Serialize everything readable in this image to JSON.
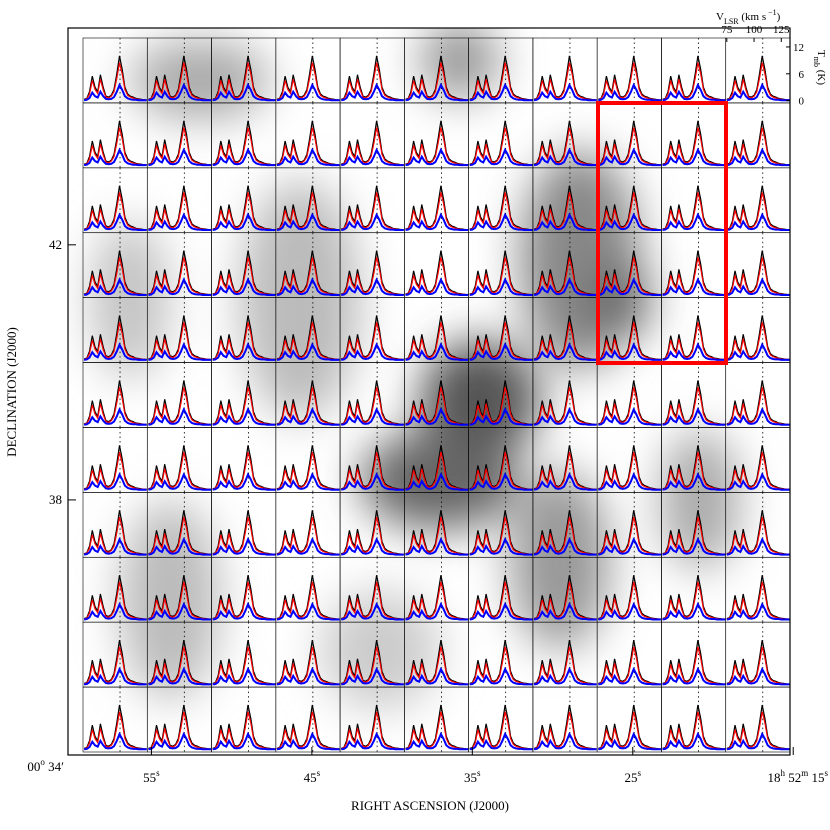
{
  "chart_data": {
    "type": "spectral-grid",
    "x_label": "RIGHT ASCENSION (J2000)",
    "y_label": "DECLINATION (J2000)",
    "xlim": [
      60.2,
      15.2
    ],
    "xticks": [
      {
        "value": 55,
        "label": [
          "55",
          "s"
        ]
      },
      {
        "value": 45,
        "label": [
          "45",
          "s"
        ]
      },
      {
        "value": 35,
        "label": [
          "35",
          "s"
        ]
      },
      {
        "value": 25,
        "label": [
          "25",
          "s"
        ]
      },
      {
        "value": 15,
        "label": [
          "18",
          "h",
          " 52",
          "m",
          " 15",
          "s"
        ]
      }
    ],
    "ylim": [
      34,
      45.4
    ],
    "yticks": [
      42,
      38,
      {
        "value": 34,
        "label": [
          "00",
          "o",
          " 34′"
        ]
      }
    ],
    "spectra": {
      "velocity_label": [
        "V",
        "LSR",
        " (km s",
        " −1",
        ")"
      ],
      "intensity_label": [
        "T",
        "mb",
        " (K)"
      ],
      "vlim": [
        74,
        133
      ],
      "vticks": [
        75,
        100,
        125
      ],
      "tlim": [
        -0.5,
        14
      ],
      "tticks": [
        0,
        6,
        12
      ],
      "ref_velocity": 108,
      "x": [
        75,
        77.5,
        80,
        82.5,
        85,
        87.5,
        90,
        92.5,
        95,
        97.5,
        100,
        102.5,
        105,
        107.5,
        110,
        112.5,
        115,
        117.5,
        120,
        122.5,
        125,
        127.5,
        130,
        132.5
      ],
      "series": [
        {
          "color": "#000000",
          "values": [
            0.3,
            0.5,
            2,
            5.5,
            3,
            2,
            5.8,
            3,
            1,
            0.8,
            1.2,
            2.5,
            6,
            10,
            7,
            3,
            1.5,
            1,
            0.8,
            0.5,
            0.4,
            0.3,
            0.2,
            0.2
          ]
        },
        {
          "color": "#ff0000",
          "values": [
            0.2,
            0.4,
            1.5,
            4.5,
            2.5,
            1.6,
            4.8,
            2.4,
            0.8,
            0.6,
            1,
            2,
            5,
            8.5,
            6,
            2.5,
            1.2,
            0.8,
            0.6,
            0.4,
            0.3,
            0.2,
            0.2,
            0.1
          ]
        },
        {
          "color": "#0000ff",
          "values": [
            0.1,
            0.2,
            0.6,
            1.8,
            1,
            0.7,
            2,
            1,
            0.4,
            0.3,
            0.4,
            0.8,
            2,
            3.5,
            2.4,
            1,
            0.5,
            0.3,
            0.2,
            0.2,
            0.1,
            0.1,
            0.1,
            0.1
          ]
        }
      ]
    }
  }
}
